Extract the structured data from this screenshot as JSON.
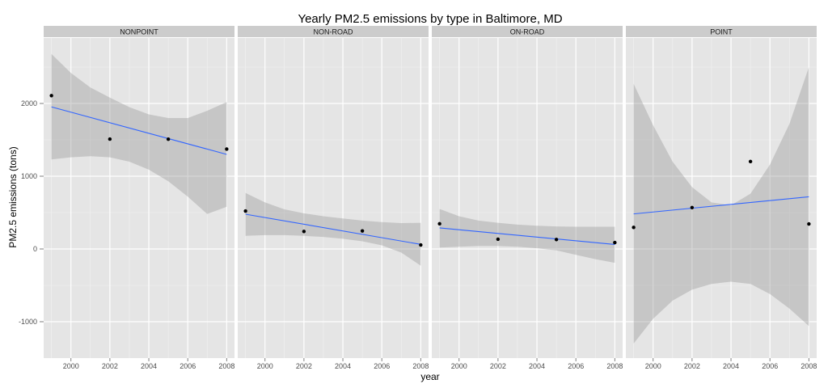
{
  "chart_data": {
    "type": "scatter",
    "title": "Yearly PM2.5 emissions by type in Baltimore, MD",
    "xlabel": "year",
    "ylabel": "PM2.5 emissions (tons)",
    "xlim": [
      1998.6,
      2008.4
    ],
    "ylim": [
      -1500,
      2900
    ],
    "x_ticks": [
      2000,
      2002,
      2004,
      2006,
      2008
    ],
    "y_ticks": [
      -1000,
      0,
      1000,
      2000
    ],
    "panels": [
      {
        "name": "NONPOINT",
        "x": [
          1999,
          2002,
          2005,
          2008
        ],
        "y": [
          2108,
          1510,
          1509,
          1373
        ],
        "fit": {
          "x": [
            1999,
            2008
          ],
          "y": [
            1953,
            1300
          ]
        },
        "band": {
          "x": [
            1999,
            2000,
            2001,
            2002,
            2003,
            2004,
            2005,
            2006,
            2007,
            2008
          ],
          "upper": [
            2680,
            2420,
            2220,
            2080,
            1950,
            1850,
            1800,
            1800,
            1900,
            2020
          ],
          "lower": [
            1230,
            1260,
            1275,
            1260,
            1200,
            1090,
            930,
            720,
            480,
            580
          ]
        }
      },
      {
        "name": "NON-ROAD",
        "x": [
          1999,
          2002,
          2005,
          2008
        ],
        "y": [
          522,
          241,
          248,
          55
        ],
        "fit": {
          "x": [
            1999,
            2008
          ],
          "y": [
            478,
            63
          ]
        },
        "band": {
          "x": [
            1999,
            2000,
            2001,
            2002,
            2003,
            2004,
            2005,
            2006,
            2007,
            2008
          ],
          "upper": [
            770,
            640,
            545,
            490,
            450,
            420,
            390,
            370,
            355,
            360
          ],
          "lower": [
            180,
            190,
            190,
            180,
            165,
            140,
            105,
            50,
            -50,
            -230
          ]
        }
      },
      {
        "name": "ON-ROAD",
        "x": [
          1999,
          2002,
          2005,
          2008
        ],
        "y": [
          346,
          134,
          130,
          88
        ],
        "fit": {
          "x": [
            1999,
            2008
          ],
          "y": [
            290,
            62
          ]
        },
        "band": {
          "x": [
            1999,
            2000,
            2001,
            2002,
            2003,
            2004,
            2005,
            2006,
            2007,
            2008
          ],
          "upper": [
            550,
            450,
            390,
            360,
            335,
            320,
            310,
            305,
            305,
            305
          ],
          "lower": [
            20,
            30,
            40,
            40,
            30,
            10,
            -20,
            -80,
            -140,
            -190
          ]
        }
      },
      {
        "name": "POINT",
        "x": [
          1999,
          2002,
          2005,
          2008
        ],
        "y": [
          296,
          569,
          1202,
          344
        ],
        "fit": {
          "x": [
            1999,
            2008
          ],
          "y": [
            482,
            717
          ]
        },
        "band": {
          "x": [
            1999,
            2000,
            2001,
            2002,
            2003,
            2004,
            2005,
            2006,
            2007,
            2008
          ],
          "upper": [
            2270,
            1700,
            1200,
            850,
            640,
            600,
            760,
            1160,
            1720,
            2500
          ],
          "lower": [
            -1300,
            -960,
            -710,
            -560,
            -480,
            -450,
            -480,
            -620,
            -820,
            -1060
          ]
        }
      }
    ],
    "colors": {
      "panel_bg": "#e5e5e5",
      "grid_major": "#ffffff",
      "grid_minor": "#f2f2f2",
      "strip_bg": "#cccccc",
      "fit_line": "#3366ff",
      "band": "#999999",
      "point": "#000000"
    }
  }
}
